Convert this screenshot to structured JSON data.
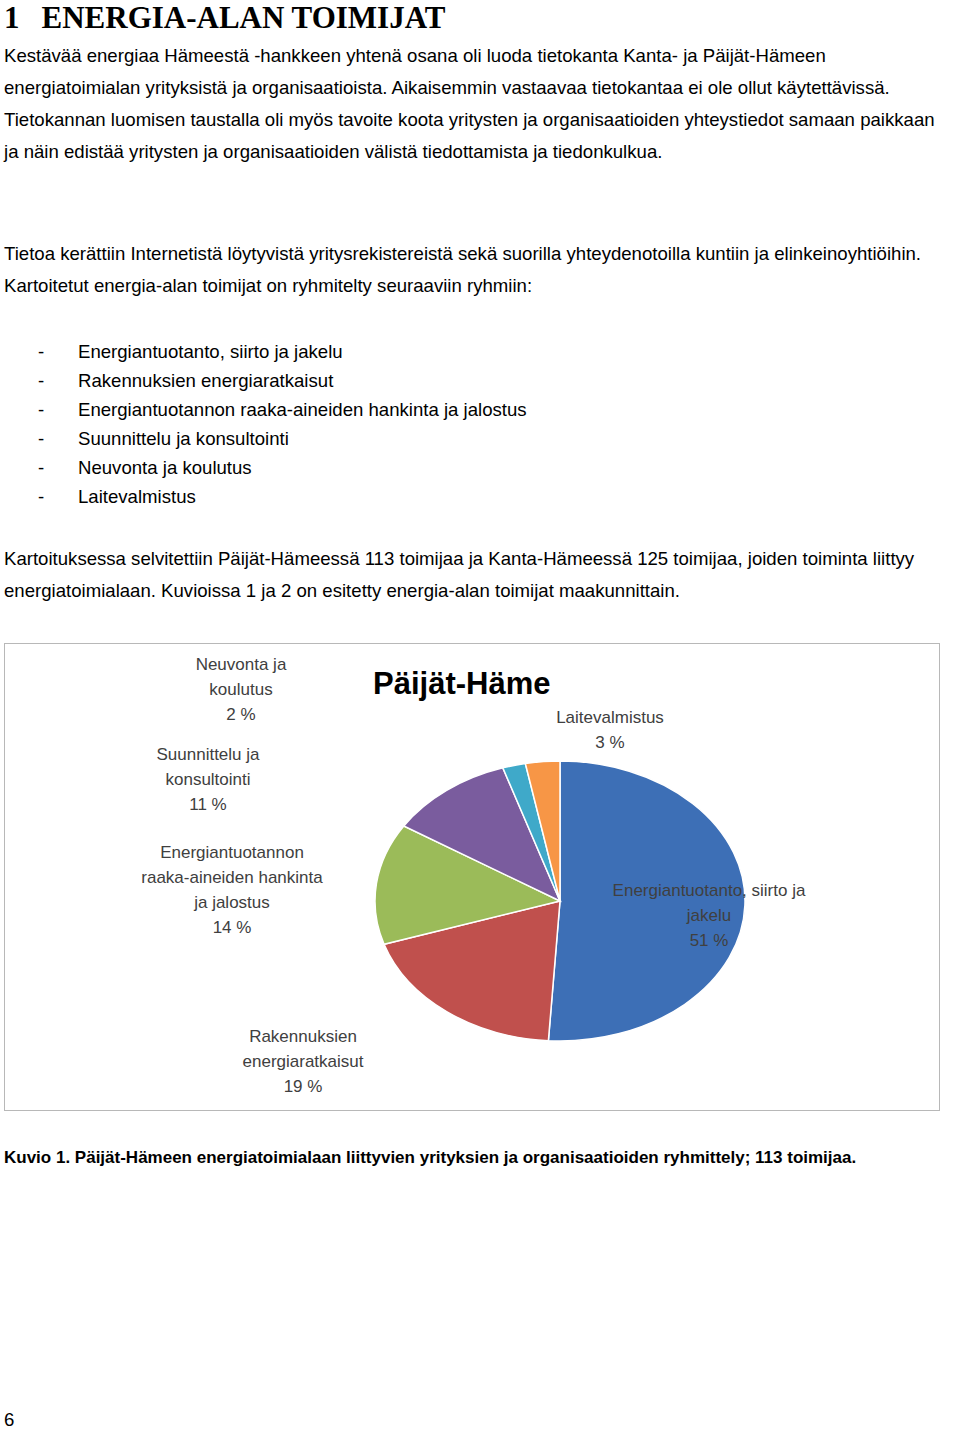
{
  "heading": {
    "number": "1",
    "title": "ENERGIA-ALAN TOIMIJAT"
  },
  "paragraphs": [
    "Kestävää energiaa Hämeestä -hankkeen yhtenä osana oli luoda tietokanta Kanta- ja Päijät-Hämeen energiatoimialan yrityksistä ja organisaatioista. Aikaisemmin vastaavaa tietokantaa ei ole ollut käytettävissä. Tietokannan luomisen taustalla oli myös tavoite koota yritysten ja organisaatioiden yhteystiedot samaan paikkaan ja näin edistää yritysten ja organisaatioiden välistä tiedottamista ja tiedonkulkua.",
    "Tietoa kerättiin Internetistä löytyvistä yritysrekistereistä sekä suorilla yhteydenotoilla kuntiin ja elinkeinoyhtiöihin. Kartoitetut energia-alan toimijat on ryhmitelty seuraaviin ryhmiin:"
  ],
  "list_marker": "-",
  "list": [
    "Energiantuotanto, siirto ja jakelu",
    "Rakennuksien energiaratkaisut",
    "Energiantuotannon raaka-aineiden hankinta ja jalostus",
    "Suunnittelu ja konsultointi",
    "Neuvonta ja koulutus",
    "Laitevalmistus"
  ],
  "paragraph_after_list": "Kartoituksessa selvitettiin Päijät-Hämeessä 113 toimijaa ja Kanta-Hämeessä 125 toimijaa, joiden toiminta liittyy energiatoimialaan. Kuvioissa 1 ja 2 on esitetty energia-alan toimijat maakunnittain.",
  "chart_data": {
    "type": "pie",
    "title": "Päijät-Häme",
    "categories": [
      "Energiantuotanto, siirto ja jakelu",
      "Rakennuksien energiaratkaisut",
      "Energiantuotannon raaka-aineiden hankinta ja jalostus",
      "Suunnittelu ja konsultointi",
      "Neuvonta ja koulutus",
      "Laitevalmistus"
    ],
    "values": [
      51,
      19,
      14,
      11,
      2,
      3
    ],
    "value_labels": [
      "51 %",
      "19 %",
      "14 %",
      "11 %",
      "2 %",
      "3 %"
    ],
    "colors": [
      "#3d6fb6",
      "#c0504d",
      "#9bbb59",
      "#7a5c9e",
      "#3fa9c9",
      "#f79646"
    ],
    "data_labels": true
  },
  "caption": "Kuvio 1. Päijät-Hämeen energiatoimialaan liittyvien yrityksien ja organisaatioiden ryhmittely; 113 toimijaa.",
  "page_number": "6"
}
